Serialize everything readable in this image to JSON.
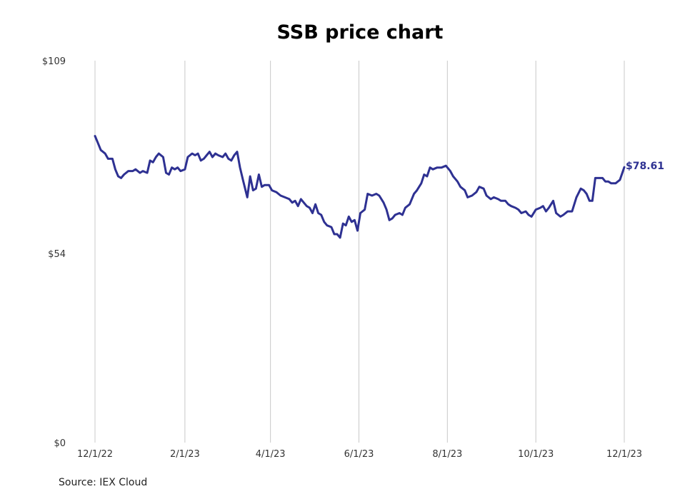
{
  "chart_data": {
    "type": "line",
    "title": "SSB price chart",
    "source": "Source: IEX Cloud",
    "x_tick_labels": [
      "12/1/22",
      "2/1/23",
      "4/1/23",
      "6/1/23",
      "8/1/23",
      "10/1/23",
      "12/1/23"
    ],
    "x_tick_dates": [
      "2022-12-01",
      "2023-02-01",
      "2023-04-01",
      "2023-06-01",
      "2023-08-01",
      "2023-10-01",
      "2023-12-01"
    ],
    "y_tick_labels": [
      "$0",
      "$54",
      "$109"
    ],
    "y_tick_values": [
      0,
      54,
      109
    ],
    "ylim": [
      0,
      109
    ],
    "xlim": [
      "2022-12-01",
      "2023-12-01"
    ],
    "grid": "vertical",
    "end_label": "$78.61",
    "colors": {
      "line": "#2e3192",
      "grid": "#c8c8c8",
      "end_label": "#2e3192"
    },
    "series": [
      {
        "points": [
          [
            "2022-12-01",
            87.5
          ],
          [
            "2022-12-03",
            85.5
          ],
          [
            "2022-12-05",
            83.5
          ],
          [
            "2022-12-08",
            82.5
          ],
          [
            "2022-12-10",
            81.0
          ],
          [
            "2022-12-13",
            81.0
          ],
          [
            "2022-12-15",
            78.0
          ],
          [
            "2022-12-17",
            76.0
          ],
          [
            "2022-12-19",
            75.5
          ],
          [
            "2022-12-21",
            76.5
          ],
          [
            "2022-12-24",
            77.5
          ],
          [
            "2022-12-27",
            77.5
          ],
          [
            "2022-12-29",
            78.0
          ],
          [
            "2023-01-01",
            77.0
          ],
          [
            "2023-01-03",
            77.5
          ],
          [
            "2023-01-06",
            77.0
          ],
          [
            "2023-01-08",
            80.5
          ],
          [
            "2023-01-10",
            80.0
          ],
          [
            "2023-01-12",
            81.5
          ],
          [
            "2023-01-14",
            82.5
          ],
          [
            "2023-01-17",
            81.5
          ],
          [
            "2023-01-19",
            77.0
          ],
          [
            "2023-01-21",
            76.5
          ],
          [
            "2023-01-23",
            78.5
          ],
          [
            "2023-01-25",
            78.0
          ],
          [
            "2023-01-27",
            78.5
          ],
          [
            "2023-01-29",
            77.5
          ],
          [
            "2023-02-01",
            78.0
          ],
          [
            "2023-02-03",
            81.5
          ],
          [
            "2023-02-06",
            82.5
          ],
          [
            "2023-02-08",
            82.0
          ],
          [
            "2023-02-10",
            82.5
          ],
          [
            "2023-02-12",
            80.5
          ],
          [
            "2023-02-14",
            81.0
          ],
          [
            "2023-02-16",
            82.0
          ],
          [
            "2023-02-18",
            83.0
          ],
          [
            "2023-02-20",
            81.5
          ],
          [
            "2023-02-22",
            82.5
          ],
          [
            "2023-02-24",
            82.0
          ],
          [
            "2023-02-27",
            81.5
          ],
          [
            "2023-03-01",
            82.5
          ],
          [
            "2023-03-03",
            81.0
          ],
          [
            "2023-03-05",
            80.5
          ],
          [
            "2023-03-07",
            82.0
          ],
          [
            "2023-03-09",
            83.0
          ],
          [
            "2023-03-11",
            78.5
          ],
          [
            "2023-03-13",
            75.0
          ],
          [
            "2023-03-16",
            70.0
          ],
          [
            "2023-03-18",
            76.0
          ],
          [
            "2023-03-20",
            72.0
          ],
          [
            "2023-03-22",
            72.5
          ],
          [
            "2023-03-24",
            76.5
          ],
          [
            "2023-03-26",
            73.0
          ],
          [
            "2023-03-28",
            73.5
          ],
          [
            "2023-03-31",
            73.5
          ],
          [
            "2023-04-02",
            72.0
          ],
          [
            "2023-04-05",
            71.5
          ],
          [
            "2023-04-08",
            70.5
          ],
          [
            "2023-04-11",
            70.0
          ],
          [
            "2023-04-14",
            69.5
          ],
          [
            "2023-04-16",
            68.5
          ],
          [
            "2023-04-18",
            69.0
          ],
          [
            "2023-04-20",
            67.5
          ],
          [
            "2023-04-22",
            69.5
          ],
          [
            "2023-04-24",
            68.5
          ],
          [
            "2023-04-26",
            67.5
          ],
          [
            "2023-04-28",
            67.0
          ],
          [
            "2023-04-30",
            65.5
          ],
          [
            "2023-05-02",
            68.0
          ],
          [
            "2023-05-04",
            65.5
          ],
          [
            "2023-05-06",
            65.0
          ],
          [
            "2023-05-08",
            63.0
          ],
          [
            "2023-05-10",
            62.0
          ],
          [
            "2023-05-13",
            61.5
          ],
          [
            "2023-05-15",
            59.5
          ],
          [
            "2023-05-17",
            59.5
          ],
          [
            "2023-05-19",
            58.5
          ],
          [
            "2023-05-21",
            62.5
          ],
          [
            "2023-05-23",
            62.0
          ],
          [
            "2023-05-25",
            64.5
          ],
          [
            "2023-05-27",
            63.0
          ],
          [
            "2023-05-29",
            63.5
          ],
          [
            "2023-05-31",
            60.5
          ],
          [
            "2023-06-02",
            65.5
          ],
          [
            "2023-06-05",
            66.5
          ],
          [
            "2023-06-07",
            71.0
          ],
          [
            "2023-06-10",
            70.5
          ],
          [
            "2023-06-13",
            71.0
          ],
          [
            "2023-06-15",
            70.5
          ],
          [
            "2023-06-18",
            68.5
          ],
          [
            "2023-06-20",
            66.5
          ],
          [
            "2023-06-22",
            63.5
          ],
          [
            "2023-06-24",
            64.0
          ],
          [
            "2023-06-26",
            65.0
          ],
          [
            "2023-06-29",
            65.5
          ],
          [
            "2023-07-01",
            65.0
          ],
          [
            "2023-07-03",
            67.0
          ],
          [
            "2023-07-06",
            68.0
          ],
          [
            "2023-07-09",
            71.0
          ],
          [
            "2023-07-11",
            72.0
          ],
          [
            "2023-07-14",
            74.0
          ],
          [
            "2023-07-16",
            76.5
          ],
          [
            "2023-07-18",
            76.0
          ],
          [
            "2023-07-20",
            78.5
          ],
          [
            "2023-07-22",
            78.0
          ],
          [
            "2023-07-25",
            78.5
          ],
          [
            "2023-07-28",
            78.5
          ],
          [
            "2023-07-31",
            79.0
          ],
          [
            "2023-08-03",
            77.5
          ],
          [
            "2023-08-05",
            76.0
          ],
          [
            "2023-08-08",
            74.5
          ],
          [
            "2023-08-10",
            73.0
          ],
          [
            "2023-08-13",
            72.0
          ],
          [
            "2023-08-15",
            70.0
          ],
          [
            "2023-08-18",
            70.5
          ],
          [
            "2023-08-21",
            71.5
          ],
          [
            "2023-08-23",
            73.0
          ],
          [
            "2023-08-26",
            72.5
          ],
          [
            "2023-08-28",
            70.5
          ],
          [
            "2023-08-31",
            69.5
          ],
          [
            "2023-09-02",
            70.0
          ],
          [
            "2023-09-05",
            69.5
          ],
          [
            "2023-09-07",
            69.0
          ],
          [
            "2023-09-10",
            69.0
          ],
          [
            "2023-09-12",
            68.0
          ],
          [
            "2023-09-14",
            67.5
          ],
          [
            "2023-09-17",
            67.0
          ],
          [
            "2023-09-19",
            66.5
          ],
          [
            "2023-09-21",
            65.5
          ],
          [
            "2023-09-24",
            66.0
          ],
          [
            "2023-09-26",
            65.0
          ],
          [
            "2023-09-28",
            64.5
          ],
          [
            "2023-10-01",
            66.5
          ],
          [
            "2023-10-04",
            67.0
          ],
          [
            "2023-10-06",
            67.5
          ],
          [
            "2023-10-08",
            66.0
          ],
          [
            "2023-10-10",
            67.0
          ],
          [
            "2023-10-13",
            69.0
          ],
          [
            "2023-10-15",
            65.5
          ],
          [
            "2023-10-18",
            64.5
          ],
          [
            "2023-10-20",
            65.0
          ],
          [
            "2023-10-23",
            66.0
          ],
          [
            "2023-10-26",
            66.0
          ],
          [
            "2023-10-29",
            70.0
          ],
          [
            "2023-11-01",
            72.5
          ],
          [
            "2023-11-03",
            72.0
          ],
          [
            "2023-11-05",
            71.0
          ],
          [
            "2023-11-07",
            69.0
          ],
          [
            "2023-11-09",
            69.0
          ],
          [
            "2023-11-11",
            75.5
          ],
          [
            "2023-11-13",
            75.5
          ],
          [
            "2023-11-16",
            75.5
          ],
          [
            "2023-11-18",
            74.5
          ],
          [
            "2023-11-20",
            74.5
          ],
          [
            "2023-11-22",
            74.0
          ],
          [
            "2023-11-25",
            74.0
          ],
          [
            "2023-11-28",
            75.0
          ],
          [
            "2023-12-01",
            78.61
          ]
        ]
      }
    ]
  }
}
